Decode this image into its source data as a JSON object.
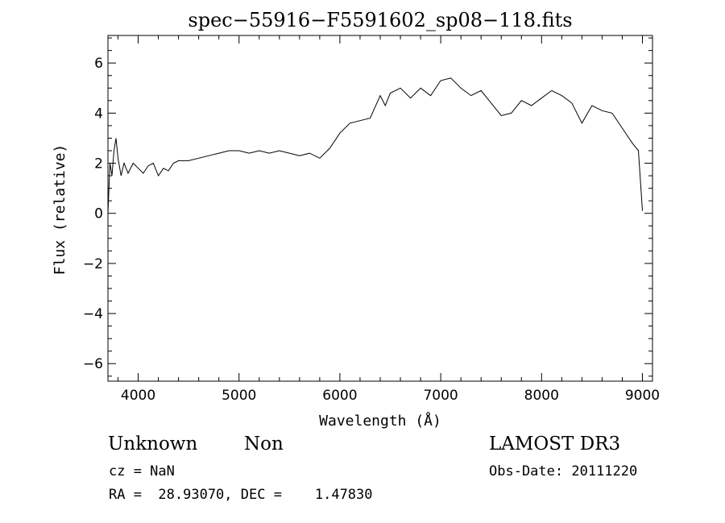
{
  "chart_data": {
    "type": "line",
    "title": "spec−55916−F5591602_sp08−118.fits",
    "xlabel": "Wavelength (Å)",
    "ylabel": "Flux (relative)",
    "xlim": [
      3700,
      9100
    ],
    "ylim": [
      -6.7,
      7.1
    ],
    "xticks": [
      4000,
      5000,
      6000,
      7000,
      8000,
      9000
    ],
    "yticks": [
      -6,
      -4,
      -2,
      0,
      2,
      4,
      6
    ],
    "ytick_labels": [
      "−6",
      "−4",
      "−2",
      "0",
      "2",
      "4",
      "6"
    ],
    "grid": false,
    "series": [
      {
        "color": "#000000",
        "x": [
          3700,
          3720,
          3740,
          3760,
          3780,
          3800,
          3830,
          3860,
          3900,
          3950,
          4000,
          4050,
          4100,
          4150,
          4200,
          4250,
          4300,
          4350,
          4400,
          4500,
          4600,
          4700,
          4800,
          4900,
          5000,
          5100,
          5200,
          5300,
          5400,
          5500,
          5600,
          5700,
          5800,
          5900,
          6000,
          6100,
          6200,
          6300,
          6400,
          6450,
          6500,
          6600,
          6700,
          6800,
          6900,
          7000,
          7100,
          7200,
          7300,
          7400,
          7500,
          7600,
          7700,
          7800,
          7900,
          8000,
          8100,
          8200,
          8300,
          8400,
          8500,
          8600,
          8700,
          8800,
          8900,
          8960,
          9000
        ],
        "y": [
          0.0,
          2.0,
          1.5,
          2.5,
          3.0,
          2.2,
          1.5,
          2.0,
          1.6,
          2.0,
          1.8,
          1.6,
          1.9,
          2.0,
          1.5,
          1.8,
          1.7,
          2.0,
          2.1,
          2.1,
          2.2,
          2.3,
          2.4,
          2.5,
          2.5,
          2.4,
          2.5,
          2.4,
          2.5,
          2.4,
          2.3,
          2.4,
          2.2,
          2.6,
          3.2,
          3.6,
          3.7,
          3.8,
          4.7,
          4.3,
          4.8,
          5.0,
          4.6,
          5.0,
          4.7,
          5.3,
          5.4,
          5.0,
          4.7,
          4.9,
          4.4,
          3.9,
          4.0,
          4.5,
          4.3,
          4.6,
          4.9,
          4.7,
          4.4,
          3.6,
          4.3,
          4.1,
          4.0,
          3.4,
          2.8,
          2.5,
          0.1
        ]
      }
    ]
  },
  "footer": {
    "object_class": "Unknown",
    "object_subclass": "Non",
    "survey": "LAMOST DR3",
    "redshift": "cz = NaN",
    "obs_date": "Obs-Date: 20111220",
    "coords": "RA =  28.93070, DEC =    1.47830"
  }
}
